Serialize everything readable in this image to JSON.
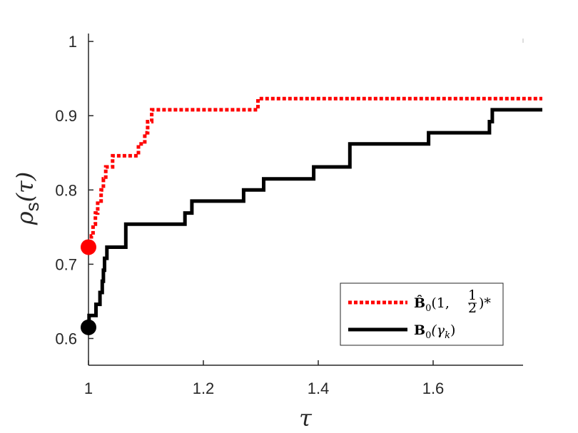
{
  "chart_data": {
    "type": "line",
    "xlabel": "τ",
    "ylabel": {
      "main": "ρ",
      "subscript": "s",
      "arg": "(τ)"
    },
    "xlim": [
      1.0,
      1.79
    ],
    "ylim": [
      0.565,
      1.0
    ],
    "x_ticks": [
      1,
      1.2,
      1.4,
      1.6
    ],
    "x_tick_labels": [
      "1",
      "1.2",
      "1.4",
      "1.6"
    ],
    "y_ticks": [
      0.6,
      0.7,
      0.8,
      0.9,
      1.0
    ],
    "y_tick_labels": [
      "0.6",
      "0.7",
      "0.8",
      "0.9",
      "1"
    ],
    "grid": false,
    "legend": "bottom-right",
    "series": [
      {
        "name": "B̂0(1, 1/2)*",
        "color": "#ff0000",
        "style": "dotted",
        "marker_start": {
          "x": 1.0,
          "y": 0.723
        },
        "points": [
          [
            1.0,
            0.723
          ],
          [
            1.005,
            0.723
          ],
          [
            1.005,
            0.738
          ],
          [
            1.008,
            0.738
          ],
          [
            1.008,
            0.754
          ],
          [
            1.012,
            0.754
          ],
          [
            1.012,
            0.769
          ],
          [
            1.016,
            0.769
          ],
          [
            1.016,
            0.785
          ],
          [
            1.022,
            0.785
          ],
          [
            1.022,
            0.8
          ],
          [
            1.026,
            0.8
          ],
          [
            1.026,
            0.815
          ],
          [
            1.03,
            0.815
          ],
          [
            1.03,
            0.831
          ],
          [
            1.042,
            0.831
          ],
          [
            1.042,
            0.846
          ],
          [
            1.087,
            0.846
          ],
          [
            1.087,
            0.862
          ],
          [
            1.098,
            0.862
          ],
          [
            1.098,
            0.877
          ],
          [
            1.103,
            0.877
          ],
          [
            1.103,
            0.892
          ],
          [
            1.11,
            0.892
          ],
          [
            1.11,
            0.908
          ],
          [
            1.295,
            0.908
          ],
          [
            1.295,
            0.923
          ],
          [
            1.79,
            0.923
          ]
        ]
      },
      {
        "name": "B0(γk)",
        "color": "#000000",
        "style": "solid",
        "marker_start": {
          "x": 1.0,
          "y": 0.615
        },
        "points": [
          [
            1.0,
            0.615
          ],
          [
            1.001,
            0.615
          ],
          [
            1.001,
            0.631
          ],
          [
            1.013,
            0.631
          ],
          [
            1.013,
            0.646
          ],
          [
            1.02,
            0.646
          ],
          [
            1.02,
            0.662
          ],
          [
            1.024,
            0.662
          ],
          [
            1.024,
            0.677
          ],
          [
            1.026,
            0.677
          ],
          [
            1.026,
            0.692
          ],
          [
            1.028,
            0.692
          ],
          [
            1.028,
            0.708
          ],
          [
            1.032,
            0.708
          ],
          [
            1.032,
            0.723
          ],
          [
            1.065,
            0.723
          ],
          [
            1.065,
            0.754
          ],
          [
            1.168,
            0.754
          ],
          [
            1.168,
            0.769
          ],
          [
            1.18,
            0.769
          ],
          [
            1.18,
            0.785
          ],
          [
            1.27,
            0.785
          ],
          [
            1.27,
            0.8
          ],
          [
            1.305,
            0.8
          ],
          [
            1.305,
            0.815
          ],
          [
            1.392,
            0.815
          ],
          [
            1.392,
            0.831
          ],
          [
            1.455,
            0.831
          ],
          [
            1.455,
            0.862
          ],
          [
            1.592,
            0.862
          ],
          [
            1.592,
            0.877
          ],
          [
            1.698,
            0.877
          ],
          [
            1.698,
            0.892
          ],
          [
            1.703,
            0.892
          ],
          [
            1.703,
            0.908
          ],
          [
            1.79,
            0.908
          ]
        ]
      }
    ]
  },
  "legend": {
    "entries": [
      {
        "prefix": "B̂",
        "sub": "0",
        "suffix": "(1, ",
        "frac_num": "1",
        "frac_den": "2",
        "tail": ")*"
      },
      {
        "prefix": "B",
        "sub": "0",
        "suffix": "(γ",
        "sub2": "k",
        "tail": ")"
      }
    ]
  }
}
